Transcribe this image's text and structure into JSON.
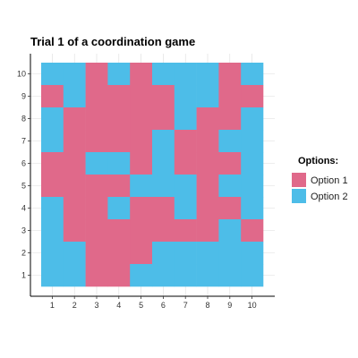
{
  "chart_data": {
    "type": "heatmap",
    "title": "Trial 1 of a coordination game",
    "xlabel": "",
    "ylabel": "",
    "x_ticks": [
      "1",
      "2",
      "3",
      "4",
      "5",
      "6",
      "7",
      "8",
      "9",
      "10"
    ],
    "y_ticks": [
      "1",
      "2",
      "3",
      "4",
      "5",
      "6",
      "7",
      "8",
      "9",
      "10"
    ],
    "xlim": [
      0.5,
      10.5
    ],
    "ylim": [
      0.5,
      10.5
    ],
    "grid": true,
    "legend": {
      "title": "Options:",
      "position": "right",
      "entries": [
        {
          "label": "Option 1",
          "value": 1,
          "color": "#e0698a"
        },
        {
          "label": "Option 2",
          "value": 2,
          "color": "#4dbde8"
        }
      ]
    },
    "rows_top_to_bottom_y": [
      10,
      9,
      8,
      7,
      6,
      5,
      4,
      3,
      2,
      1
    ],
    "grid_values": [
      [
        2,
        2,
        1,
        2,
        1,
        2,
        2,
        2,
        1,
        2
      ],
      [
        1,
        2,
        1,
        1,
        1,
        1,
        2,
        2,
        1,
        1
      ],
      [
        2,
        1,
        1,
        1,
        1,
        1,
        2,
        1,
        1,
        2
      ],
      [
        2,
        1,
        1,
        1,
        1,
        2,
        1,
        1,
        2,
        2
      ],
      [
        1,
        1,
        2,
        2,
        1,
        2,
        1,
        1,
        1,
        2
      ],
      [
        1,
        1,
        1,
        1,
        2,
        2,
        2,
        1,
        2,
        2
      ],
      [
        2,
        1,
        1,
        2,
        1,
        1,
        2,
        1,
        1,
        2
      ],
      [
        2,
        1,
        1,
        1,
        1,
        1,
        1,
        1,
        2,
        1
      ],
      [
        2,
        2,
        1,
        1,
        1,
        2,
        2,
        2,
        2,
        2
      ],
      [
        2,
        2,
        1,
        1,
        2,
        2,
        2,
        2,
        2,
        2
      ]
    ]
  }
}
